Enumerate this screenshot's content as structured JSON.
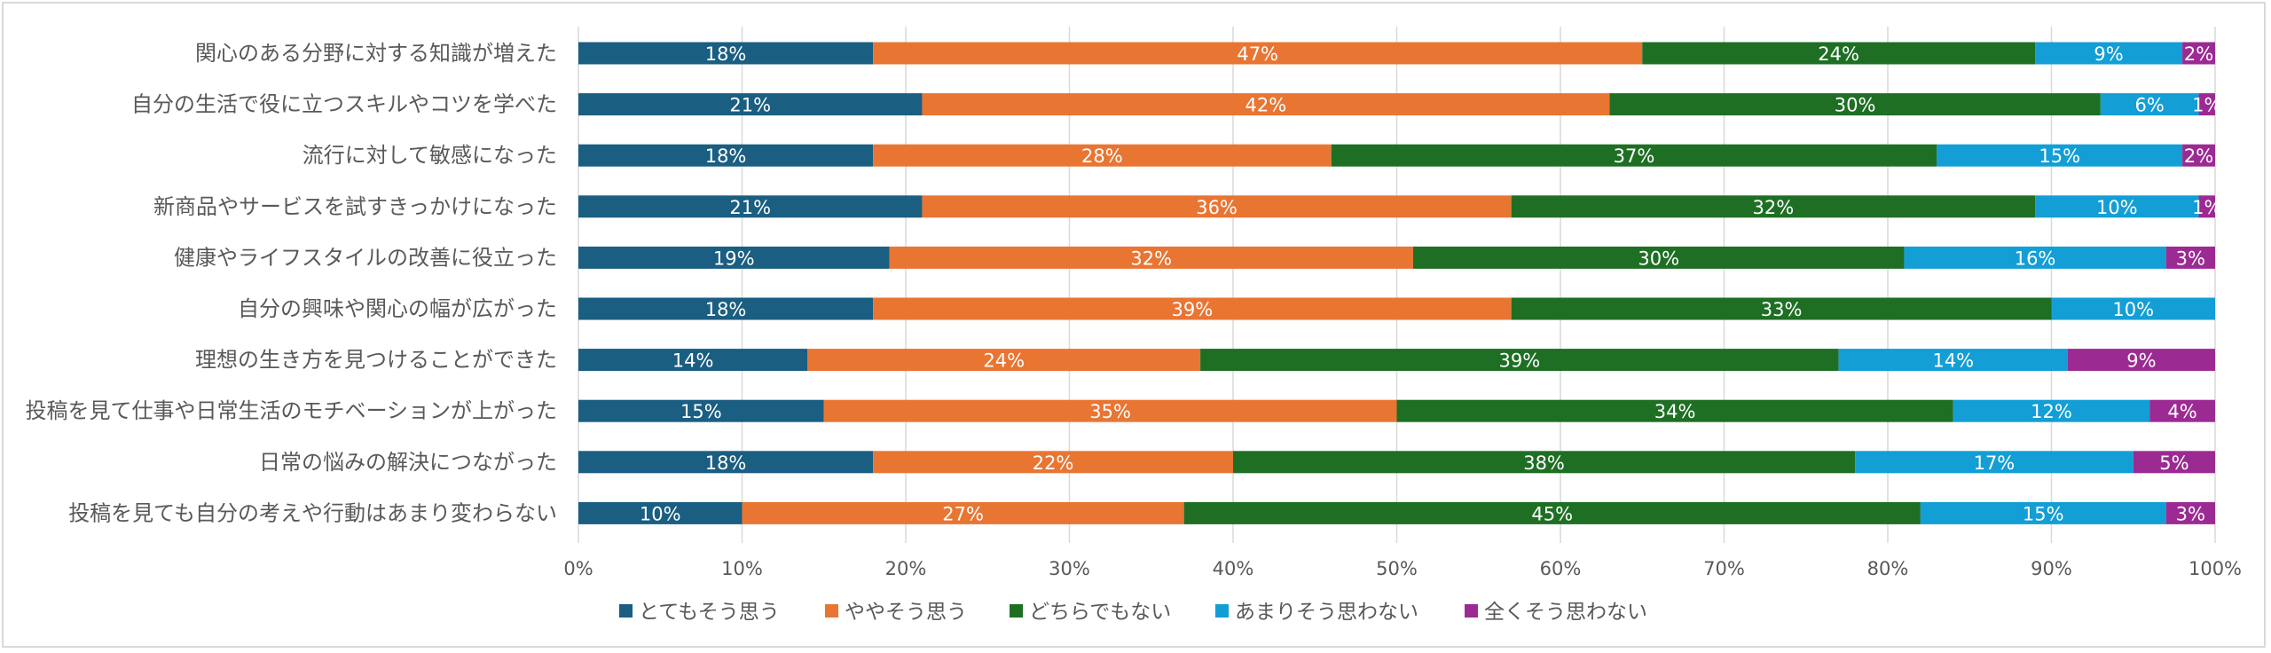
{
  "chart_data": {
    "type": "bar",
    "orientation": "horizontal",
    "stacked": "percent",
    "categories": [
      "関心のある分野に対する知識が増えた",
      "自分の生活で役に立つスキルやコツを学べた",
      "流行に対して敏感になった",
      "新商品やサービスを試すきっかけになった",
      "健康やライフスタイルの改善に役立った",
      "自分の興味や関心の幅が広がった",
      "理想の生き方を見つけることができた",
      "投稿を見て仕事や日常生活のモチベーションが上がった",
      "日常の悩みの解決につながった",
      "投稿を見ても自分の考えや行動はあまり変わらない"
    ],
    "series": [
      {
        "name": "とてもそう思う",
        "color": "#1a5e82",
        "values": [
          18,
          21,
          18,
          21,
          19,
          18,
          14,
          15,
          18,
          10
        ]
      },
      {
        "name": "ややそう思う",
        "color": "#e97533",
        "values": [
          47,
          42,
          28,
          36,
          32,
          39,
          24,
          35,
          22,
          27
        ]
      },
      {
        "name": "どちらでもない",
        "color": "#1e6f24",
        "values": [
          24,
          30,
          37,
          32,
          30,
          33,
          39,
          34,
          38,
          45
        ]
      },
      {
        "name": "あまりそう思わない",
        "color": "#139ed6",
        "values": [
          9,
          6,
          15,
          10,
          16,
          10,
          14,
          12,
          17,
          15
        ]
      },
      {
        "name": "全くそう思わない",
        "color": "#9c2a93",
        "values": [
          2,
          1,
          2,
          1,
          3,
          0,
          9,
          4,
          5,
          3
        ]
      }
    ],
    "data_labels": [
      [
        "18%",
        "21%",
        "18%",
        "21%",
        "19%",
        "18%",
        "14%",
        "15%",
        "18%",
        "10%"
      ],
      [
        "47%",
        "42%",
        "28%",
        "36%",
        "32%",
        "39%",
        "24%",
        "35%",
        "22%",
        "27%"
      ],
      [
        "24%",
        "30%",
        "37%",
        "32%",
        "30%",
        "33%",
        "39%",
        "34%",
        "38%",
        "45%"
      ],
      [
        "9%",
        "6%",
        "15%",
        "10%",
        "16%",
        "10%",
        "14%",
        "12%",
        "17%",
        "15%"
      ],
      [
        "2%",
        "1%",
        "2%",
        "1%",
        "3%",
        "",
        "9%",
        "4%",
        "5%",
        "3%"
      ]
    ],
    "xlim": [
      0,
      100
    ],
    "xticks": [
      "0%",
      "10%",
      "20%",
      "30%",
      "40%",
      "50%",
      "60%",
      "70%",
      "80%",
      "90%",
      "100%"
    ],
    "grid": "vertical",
    "legend": "bottom",
    "title": "",
    "xlabel": "",
    "ylabel": ""
  }
}
